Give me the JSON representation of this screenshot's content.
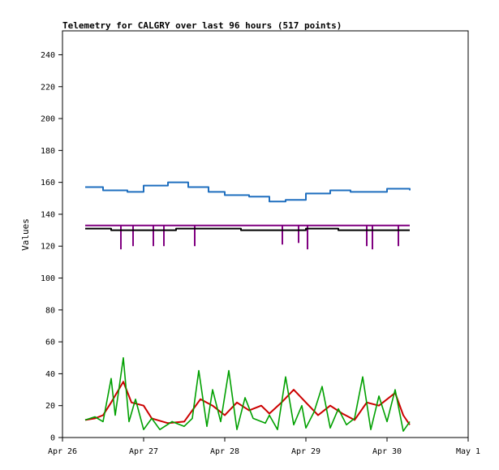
{
  "chart_data": {
    "type": "line",
    "title": "Telemetry for CALGRY over last 96 hours (517 points)",
    "xlabel": "",
    "ylabel": "Values",
    "ylim": [
      0,
      255
    ],
    "x_range": [
      "Apr 26",
      "May 1"
    ],
    "x_ticks": [
      "Apr 26",
      "Apr 27",
      "Apr 28",
      "Apr 29",
      "Apr 30",
      "May 1"
    ],
    "y_ticks": [
      0,
      20,
      40,
      60,
      80,
      100,
      120,
      140,
      160,
      180,
      200,
      220,
      240
    ],
    "grid": false,
    "series": [
      {
        "color": "#1f6fbf",
        "x": [
          26.28,
          26.5,
          26.8,
          27.0,
          27.3,
          27.55,
          27.8,
          28.0,
          28.3,
          28.55,
          28.75,
          29.0,
          29.3,
          29.55,
          29.8,
          30.0,
          30.1,
          30.28
        ],
        "values": [
          157,
          155,
          154,
          158,
          160,
          157,
          154,
          152,
          151,
          148,
          149,
          153,
          155,
          154,
          154,
          156,
          156,
          155
        ]
      },
      {
        "color": "#800080",
        "x": [
          26.28,
          30.28
        ],
        "values": [
          133,
          133
        ],
        "dips": [
          {
            "x": 26.72,
            "value": 118
          },
          {
            "x": 26.87,
            "value": 120
          },
          {
            "x": 27.12,
            "value": 120
          },
          {
            "x": 27.25,
            "value": 120
          },
          {
            "x": 27.63,
            "value": 120
          },
          {
            "x": 28.71,
            "value": 121
          },
          {
            "x": 28.91,
            "value": 122
          },
          {
            "x": 29.02,
            "value": 118
          },
          {
            "x": 29.75,
            "value": 120
          },
          {
            "x": 29.82,
            "value": 118
          },
          {
            "x": 30.14,
            "value": 120
          }
        ]
      },
      {
        "color": "#000000",
        "x": [
          26.28,
          26.6,
          27.0,
          27.4,
          27.8,
          28.2,
          28.6,
          29.0,
          29.4,
          29.8,
          30.0,
          30.28
        ],
        "values": [
          131,
          130,
          130,
          131,
          131,
          130,
          130,
          131,
          130,
          130,
          130,
          130
        ]
      },
      {
        "color": "#cc0000",
        "x": [
          26.28,
          26.4,
          26.5,
          26.6,
          26.75,
          26.85,
          27.0,
          27.1,
          27.3,
          27.5,
          27.7,
          27.85,
          28.0,
          28.15,
          28.3,
          28.45,
          28.55,
          28.7,
          28.85,
          29.0,
          29.15,
          29.3,
          29.45,
          29.6,
          29.75,
          29.9,
          30.1,
          30.2,
          30.28
        ],
        "values": [
          11,
          12,
          14,
          22,
          35,
          22,
          20,
          12,
          9,
          10,
          24,
          20,
          14,
          22,
          17,
          20,
          15,
          22,
          30,
          22,
          14,
          20,
          15,
          11,
          22,
          20,
          28,
          14,
          8
        ]
      },
      {
        "color": "#00a000",
        "x": [
          26.28,
          26.4,
          26.5,
          26.6,
          26.65,
          26.75,
          26.82,
          26.9,
          27.0,
          27.1,
          27.2,
          27.35,
          27.5,
          27.6,
          27.68,
          27.78,
          27.85,
          27.95,
          28.05,
          28.15,
          28.25,
          28.35,
          28.5,
          28.55,
          28.65,
          28.75,
          28.85,
          28.95,
          29.0,
          29.1,
          29.2,
          29.3,
          29.4,
          29.5,
          29.6,
          29.7,
          29.8,
          29.9,
          30.0,
          30.1,
          30.2,
          30.28
        ],
        "values": [
          11,
          13,
          10,
          37,
          14,
          50,
          10,
          24,
          5,
          12,
          5,
          10,
          7,
          12,
          42,
          7,
          30,
          10,
          42,
          5,
          25,
          12,
          9,
          14,
          5,
          38,
          8,
          20,
          6,
          16,
          32,
          6,
          18,
          8,
          12,
          38,
          5,
          26,
          10,
          30,
          4,
          10
        ]
      }
    ]
  }
}
